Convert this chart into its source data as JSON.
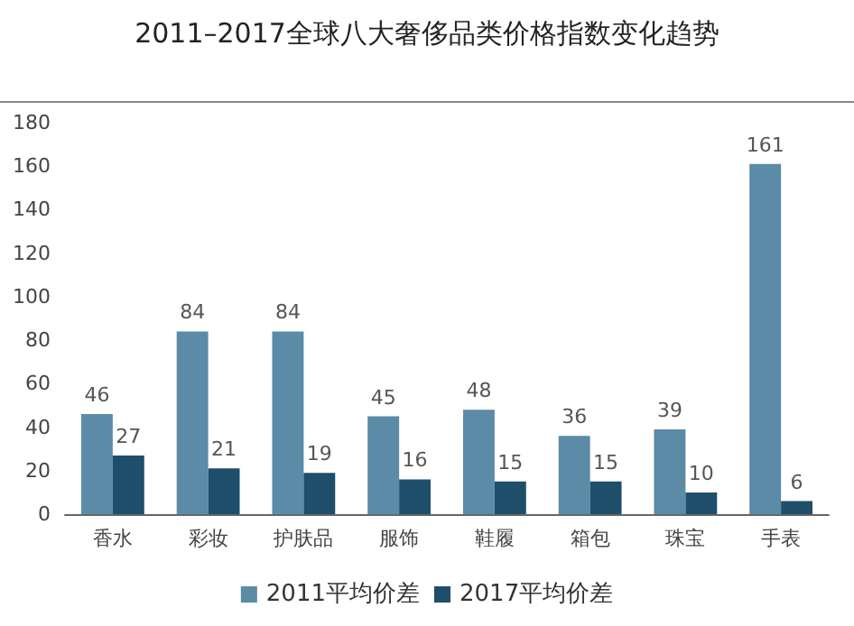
{
  "chart_data": {
    "type": "bar",
    "title": "2011–2017全球八大奢侈品类价格指数变化趋势",
    "categories": [
      "香水",
      "彩妆",
      "护肤品",
      "服饰",
      "鞋履",
      "箱包",
      "珠宝",
      "手表"
    ],
    "series": [
      {
        "name": "2011平均价差",
        "color": "#5b8ba6",
        "values": [
          46,
          84,
          84,
          45,
          48,
          36,
          39,
          161
        ]
      },
      {
        "name": "2017平均价差",
        "color": "#1f4e6b",
        "values": [
          27,
          21,
          19,
          16,
          15,
          15,
          10,
          6
        ]
      }
    ],
    "ylim": [
      0,
      180
    ],
    "yticks": [
      0,
      20,
      40,
      60,
      80,
      100,
      120,
      140,
      160,
      180
    ],
    "data_labels": true,
    "legend": "bottom",
    "grid": false
  }
}
